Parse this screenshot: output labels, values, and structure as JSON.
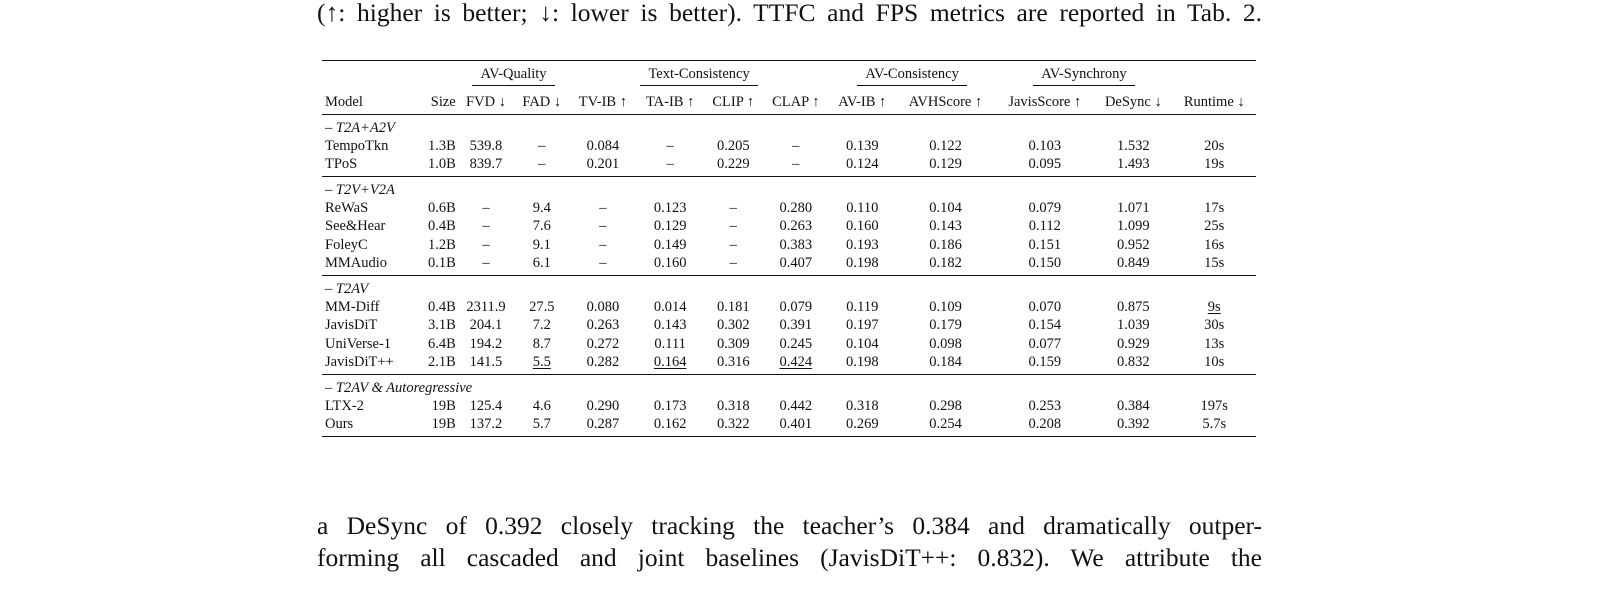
{
  "caption": "(↑: higher is better; ↓: lower is better). TTFC and FPS metrics are reported in Tab. 2.",
  "table": {
    "group_headers": [
      "AV-Quality",
      "Text-Consistency",
      "AV-Consistency",
      "AV-Synchrony"
    ],
    "columns": [
      "Model",
      "Size",
      "FVD ↓",
      "FAD ↓",
      "TV-IB ↑",
      "TA-IB ↑",
      "CLIP ↑",
      "CLAP ↑",
      "AV-IB ↑",
      "AVHScore ↑",
      "JavisScore ↑",
      "DeSync ↓",
      "Runtime ↓"
    ],
    "sections": [
      {
        "title": "– T2A+A2V",
        "rows": [
          {
            "cells": [
              "TempoTkn",
              "1.3B",
              "539.8",
              "–",
              "0.084",
              "–",
              "0.205",
              "–",
              "0.139",
              "0.122",
              "0.103",
              "1.532",
              "20s"
            ]
          },
          {
            "cells": [
              "TPoS",
              "1.0B",
              "839.7",
              "–",
              "0.201",
              "–",
              "0.229",
              "–",
              "0.124",
              "0.129",
              "0.095",
              "1.493",
              "19s"
            ]
          }
        ]
      },
      {
        "title": "– T2V+V2A",
        "rows": [
          {
            "cells": [
              "ReWaS",
              "0.6B",
              "–",
              "9.4",
              "–",
              "0.123",
              "–",
              "0.280",
              "0.110",
              "0.104",
              "0.079",
              "1.071",
              "17s"
            ]
          },
          {
            "cells": [
              "See&Hear",
              "0.4B",
              "–",
              "7.6",
              "–",
              "0.129",
              "–",
              "0.263",
              "0.160",
              "0.143",
              "0.112",
              "1.099",
              "25s"
            ]
          },
          {
            "cells": [
              "FoleyC",
              "1.2B",
              "–",
              "9.1",
              "–",
              "0.149",
              "–",
              "0.383",
              "0.193",
              "0.186",
              "0.151",
              "0.952",
              "16s"
            ]
          },
          {
            "cells": [
              "MMAudio",
              "0.1B",
              "–",
              "6.1",
              "–",
              "0.160",
              "–",
              "0.407",
              "0.198",
              "0.182",
              "0.150",
              "0.849",
              "15s"
            ]
          }
        ]
      },
      {
        "title": "– T2AV",
        "rows": [
          {
            "cells": [
              "MM-Diff",
              "0.4B",
              "2311.9",
              "27.5",
              "0.080",
              "0.014",
              "0.181",
              "0.079",
              "0.119",
              "0.109",
              "0.070",
              "0.875",
              "9s"
            ]
          },
          {
            "cells": [
              "JavisDiT",
              "3.1B",
              "204.1",
              "7.2",
              "0.263",
              "0.143",
              "0.302",
              "0.391",
              "0.197",
              "0.179",
              "0.154",
              "1.039",
              "30s"
            ]
          },
          {
            "cells": [
              "UniVerse-1",
              "6.4B",
              "194.2",
              "8.7",
              "0.272",
              "0.111",
              "0.309",
              "0.245",
              "0.104",
              "0.098",
              "0.077",
              "0.929",
              "13s"
            ]
          },
          {
            "cells": [
              "JavisDiT++",
              "2.1B",
              "141.5",
              "5.5",
              "0.282",
              "0.164",
              "0.316",
              "0.424",
              "0.198",
              "0.184",
              "0.159",
              "0.832",
              "10s"
            ]
          }
        ]
      },
      {
        "title": "– T2AV & Autoregressive",
        "rows": [
          {
            "cells": [
              "LTX-2",
              "19B",
              "125.4",
              "4.6",
              "0.290",
              "0.173",
              "0.318",
              "0.442",
              "0.318",
              "0.298",
              "0.253",
              "0.384",
              "197s"
            ]
          },
          {
            "cells": [
              "Ours",
              "19B",
              "137.2",
              "5.7",
              "0.287",
              "0.162",
              "0.322",
              "0.401",
              "0.269",
              "0.254",
              "0.208",
              "0.392",
              "5.7s"
            ]
          }
        ]
      }
    ]
  },
  "body_lines": [
    "a DeSync of 0.392 closely tracking the teacher’s 0.384 and dramatically outper-",
    "forming all cascaded and joint baselines (JavisDiT++: 0.832). We attribute the"
  ]
}
